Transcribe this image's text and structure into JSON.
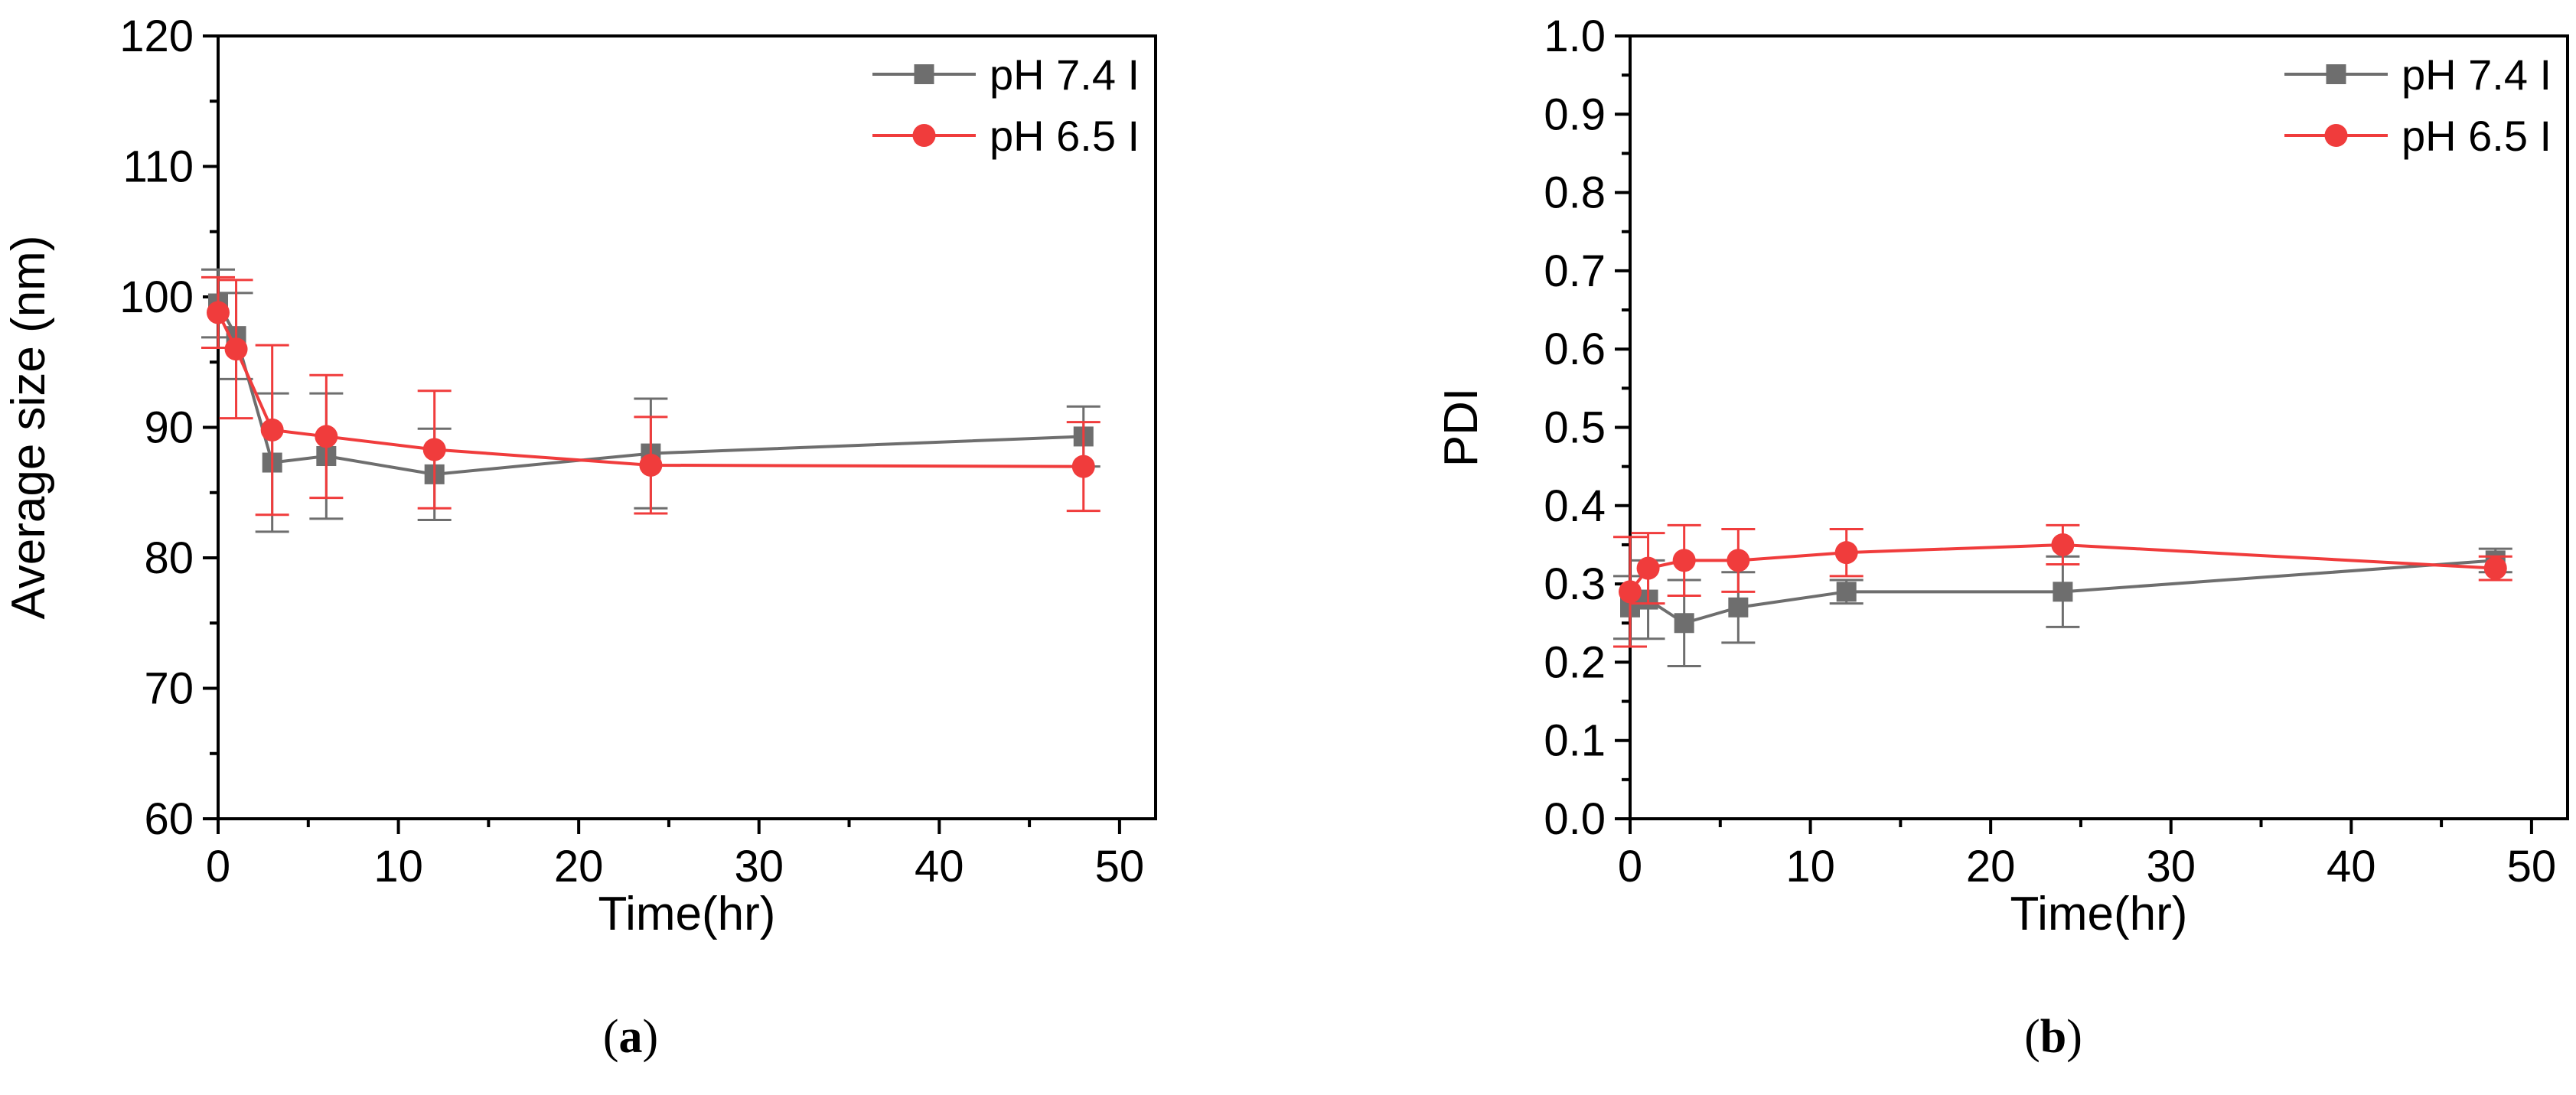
{
  "chart_data": [
    {
      "type": "line",
      "panel_label": "a",
      "title": "",
      "xlabel": "Time(hr)",
      "ylabel": "Average size (nm)",
      "xlim": [
        0,
        52
      ],
      "ylim": [
        60,
        120
      ],
      "xticks": [
        0,
        10,
        20,
        30,
        40,
        50
      ],
      "yticks": [
        60,
        70,
        80,
        90,
        100,
        110,
        120
      ],
      "x_minor_step": 5,
      "y_minor_step": 5,
      "grid": false,
      "legend_position": "top-right",
      "series": [
        {
          "name": "pH 7.4 I",
          "color": "#6e6e6e",
          "marker": "square",
          "x": [
            0,
            1,
            3,
            6,
            12,
            24,
            48
          ],
          "values": [
            99.5,
            97.0,
            87.3,
            87.8,
            86.4,
            88.0,
            89.3
          ],
          "errors": [
            2.6,
            3.3,
            5.3,
            4.8,
            3.5,
            4.2,
            2.3
          ]
        },
        {
          "name": "pH 6.5 I",
          "color": "#f03c3c",
          "marker": "circle",
          "x": [
            0,
            1,
            3,
            6,
            12,
            24,
            48
          ],
          "values": [
            98.8,
            96.0,
            89.8,
            89.3,
            88.3,
            87.1,
            87.0
          ],
          "errors": [
            2.7,
            5.3,
            6.5,
            4.7,
            4.5,
            3.7,
            3.4
          ]
        }
      ]
    },
    {
      "type": "line",
      "panel_label": "b",
      "title": "",
      "xlabel": "Time(hr)",
      "ylabel": "PDI",
      "xlim": [
        0,
        52
      ],
      "ylim": [
        0,
        1.0
      ],
      "xticks": [
        0,
        10,
        20,
        30,
        40,
        50
      ],
      "yticks": [
        0.0,
        0.1,
        0.2,
        0.3,
        0.4,
        0.5,
        0.6,
        0.7,
        0.8,
        0.9,
        1.0
      ],
      "ytick_labels": [
        "0.0",
        "0.1",
        "0.2",
        "0.3",
        "0.4",
        "0.5",
        "0.6",
        "0.7",
        "0.8",
        "0.9",
        "1.0"
      ],
      "x_minor_step": 5,
      "y_minor_step": 0.05,
      "grid": false,
      "legend_position": "top-right",
      "series": [
        {
          "name": "pH 7.4 I",
          "color": "#6e6e6e",
          "marker": "square",
          "x": [
            0,
            1,
            3,
            6,
            12,
            24,
            48
          ],
          "values": [
            0.27,
            0.28,
            0.25,
            0.27,
            0.29,
            0.29,
            0.33
          ],
          "errors": [
            0.04,
            0.05,
            0.055,
            0.045,
            0.015,
            0.045,
            0.015
          ]
        },
        {
          "name": "pH 6.5 I",
          "color": "#f03c3c",
          "marker": "circle",
          "x": [
            0,
            1,
            3,
            6,
            12,
            24,
            48
          ],
          "values": [
            0.29,
            0.32,
            0.33,
            0.33,
            0.34,
            0.35,
            0.32
          ],
          "errors": [
            0.07,
            0.045,
            0.045,
            0.04,
            0.03,
            0.025,
            0.015
          ]
        }
      ]
    }
  ]
}
